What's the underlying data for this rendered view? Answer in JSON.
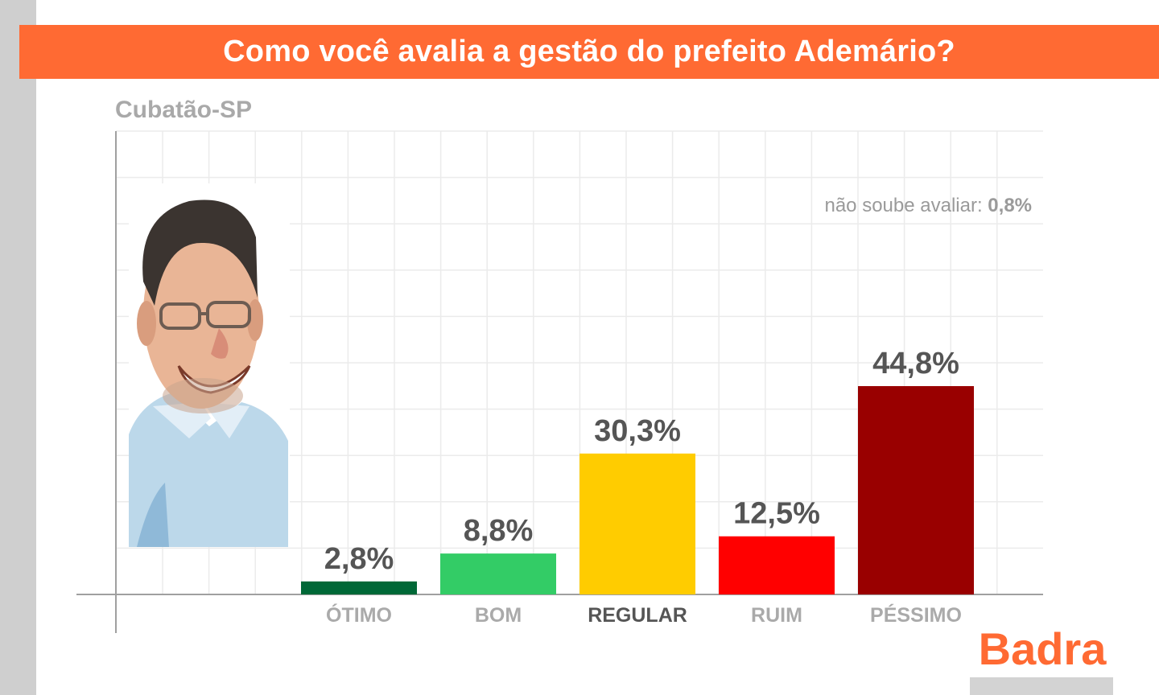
{
  "title": "Como você avalia a gestão do prefeito Ademário?",
  "location": "Cubatão-SP",
  "note": {
    "label": "não soube avaliar: ",
    "value": "0,8%"
  },
  "brand": "Badra",
  "colors": {
    "banner": "#ff6a33",
    "brand": "#ff6a33"
  },
  "chart_data": {
    "type": "bar",
    "title": "Como você avalia a gestão do prefeito Ademário?",
    "subtitle": "Cubatão-SP",
    "categories": [
      "ÓTIMO",
      "BOM",
      "REGULAR",
      "RUIM",
      "PÉSSIMO"
    ],
    "values": [
      2.8,
      8.8,
      30.3,
      12.5,
      44.8
    ],
    "value_labels": [
      "2,8%",
      "8,8%",
      "30,3%",
      "12,5%",
      "44,8%"
    ],
    "colors": [
      "#006837",
      "#33cc66",
      "#ffcc00",
      "#ff0000",
      "#990000"
    ],
    "highlight_category": "REGULAR",
    "ylim": [
      0,
      100
    ],
    "grid": true,
    "xlabel": "",
    "ylabel": "",
    "annotations": [
      "não soube avaliar: 0,8%"
    ]
  }
}
